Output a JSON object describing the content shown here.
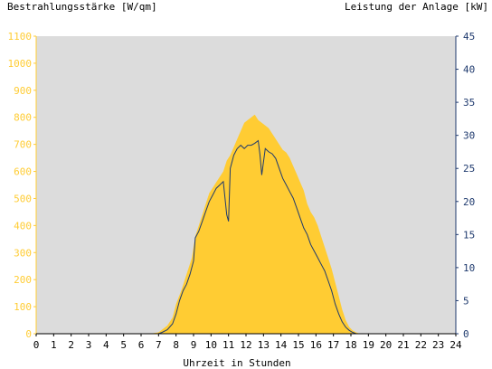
{
  "colors": {
    "plot_bg": "#dcdcdc",
    "irradiance": "#ffcc33",
    "power": "#1f3a6e",
    "left_axis": "#ffcc33",
    "right_axis": "#1f3a6e",
    "x_axis": "#000000"
  },
  "chart_data": {
    "type": "area",
    "left_title": "Bestrahlungsstärke [W/qm]",
    "right_title": "Leistung der Anlage [kW]",
    "xlabel": "Uhrzeit in Stunden",
    "xlim": [
      0,
      24
    ],
    "ylim_left": [
      0,
      1100
    ],
    "ylim_right": [
      0,
      45
    ],
    "x_ticks": [
      "0",
      "1",
      "2",
      "3",
      "4",
      "5",
      "6",
      "7",
      "8",
      "9",
      "10",
      "11",
      "12",
      "13",
      "14",
      "15",
      "16",
      "17",
      "18",
      "19",
      "20",
      "21",
      "22",
      "23",
      "24"
    ],
    "y_left_ticks": [
      "0",
      "100",
      "200",
      "300",
      "400",
      "500",
      "600",
      "700",
      "800",
      "900",
      "1000",
      "1100"
    ],
    "y_right_ticks": [
      "0",
      "5",
      "10",
      "15",
      "20",
      "25",
      "30",
      "35",
      "40",
      "45"
    ],
    "series": [
      {
        "name": "Bestrahlungsstärke [W/qm]",
        "axis": "left",
        "type": "area",
        "x": [
          0,
          6.5,
          7.0,
          7.2,
          7.5,
          7.8,
          8.0,
          8.3,
          8.6,
          8.9,
          9.1,
          9.3,
          9.5,
          9.7,
          9.9,
          10.1,
          10.3,
          10.5,
          10.7,
          10.9,
          11.1,
          11.3,
          11.5,
          11.7,
          11.9,
          12.1,
          12.3,
          12.5,
          12.7,
          12.9,
          13.1,
          13.3,
          13.5,
          13.7,
          13.9,
          14.1,
          14.3,
          14.5,
          14.7,
          14.9,
          15.1,
          15.3,
          15.5,
          15.7,
          15.9,
          16.1,
          16.3,
          16.5,
          16.7,
          16.9,
          17.1,
          17.3,
          17.5,
          17.7,
          17.9,
          18.1,
          18.3,
          18.5,
          24
        ],
        "y": [
          0,
          0,
          5,
          15,
          30,
          60,
          110,
          160,
          220,
          280,
          360,
          400,
          440,
          480,
          520,
          540,
          560,
          580,
          600,
          640,
          660,
          690,
          720,
          750,
          780,
          790,
          800,
          810,
          790,
          780,
          770,
          760,
          740,
          720,
          700,
          680,
          670,
          650,
          620,
          590,
          560,
          530,
          480,
          450,
          430,
          400,
          360,
          320,
          280,
          240,
          190,
          140,
          90,
          50,
          25,
          12,
          5,
          0,
          0
        ]
      },
      {
        "name": "Leistung der Anlage [kW]",
        "axis": "right",
        "type": "line",
        "x": [
          0,
          7.0,
          7.2,
          7.5,
          7.8,
          8.0,
          8.2,
          8.4,
          8.6,
          8.8,
          9.0,
          9.1,
          9.3,
          9.5,
          9.7,
          9.9,
          10.1,
          10.3,
          10.5,
          10.7,
          10.9,
          11.0,
          11.1,
          11.3,
          11.5,
          11.7,
          11.9,
          12.1,
          12.3,
          12.5,
          12.7,
          12.8,
          12.9,
          13.1,
          13.3,
          13.5,
          13.7,
          13.9,
          14.1,
          14.3,
          14.5,
          14.7,
          14.9,
          15.1,
          15.3,
          15.5,
          15.7,
          15.9,
          16.1,
          16.3,
          16.5,
          16.7,
          16.9,
          17.1,
          17.3,
          17.5,
          17.7,
          17.9,
          18.1,
          18.3,
          24
        ],
        "y": [
          0,
          0,
          0.2,
          0.6,
          1.5,
          3,
          5,
          6.5,
          7.5,
          9,
          11,
          14.5,
          15.5,
          17,
          18.5,
          20,
          21,
          22,
          22.5,
          23,
          18,
          17,
          25,
          27,
          28,
          28.5,
          28,
          28.5,
          28.5,
          28.8,
          29.2,
          27,
          24,
          28,
          27.5,
          27.2,
          26.5,
          25,
          23.5,
          22.5,
          21.5,
          20.5,
          19,
          17.5,
          16,
          15,
          13.5,
          12.5,
          11.5,
          10.5,
          9.5,
          8,
          6.5,
          4.5,
          3,
          1.8,
          1,
          0.5,
          0.2,
          0,
          0
        ]
      }
    ]
  }
}
